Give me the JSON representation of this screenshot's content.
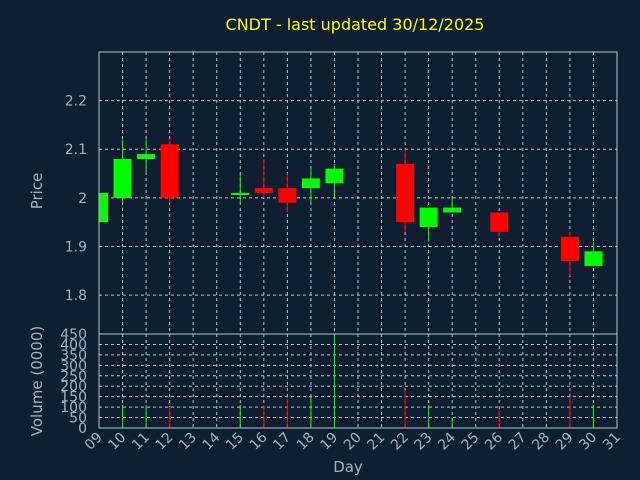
{
  "chart_data": [
    {
      "type": "candlestick",
      "title": "CNDT - last updated 30/12/2025",
      "ylabel": "Price",
      "ylim": [
        1.72,
        2.3
      ],
      "yticks": [
        "1.8",
        "1.9",
        "2",
        "2.1",
        "2.2"
      ],
      "x_ticks": [
        "09",
        "10",
        "11",
        "12",
        "13",
        "14",
        "15",
        "16",
        "17",
        "18",
        "19",
        "20",
        "21",
        "22",
        "23",
        "24",
        "25",
        "26",
        "27",
        "28",
        "29",
        "30",
        "31"
      ],
      "colors": {
        "up": "#00ff00",
        "down": "#ff0000"
      },
      "grid": true,
      "candles": [
        {
          "day": "09",
          "open": 1.95,
          "high": 2.01,
          "low": 1.95,
          "close": 2.01
        },
        {
          "day": "10",
          "open": 2.0,
          "high": 2.12,
          "low": 1.99,
          "close": 2.08
        },
        {
          "day": "11",
          "open": 2.08,
          "high": 2.12,
          "low": 2.05,
          "close": 2.09
        },
        {
          "day": "12",
          "open": 2.11,
          "high": 2.12,
          "low": 1.99,
          "close": 2.0
        },
        {
          "day": "15",
          "open": 2.01,
          "high": 2.05,
          "low": 1.99,
          "close": 2.01
        },
        {
          "day": "16",
          "open": 2.02,
          "high": 2.08,
          "low": 2.0,
          "close": 2.01
        },
        {
          "day": "17",
          "open": 2.02,
          "high": 2.05,
          "low": 1.97,
          "close": 1.99
        },
        {
          "day": "18",
          "open": 2.02,
          "high": 2.06,
          "low": 1.99,
          "close": 2.04
        },
        {
          "day": "19",
          "open": 2.03,
          "high": 2.07,
          "low": 2.0,
          "close": 2.06
        },
        {
          "day": "22",
          "open": 2.07,
          "high": 2.1,
          "low": 1.93,
          "close": 1.95
        },
        {
          "day": "23",
          "open": 1.94,
          "high": 1.98,
          "low": 1.91,
          "close": 1.98
        },
        {
          "day": "24",
          "open": 1.97,
          "high": 2.0,
          "low": 1.97,
          "close": 1.98
        },
        {
          "day": "26",
          "open": 1.97,
          "high": 1.97,
          "low": 1.92,
          "close": 1.93
        },
        {
          "day": "29",
          "open": 1.92,
          "high": 1.93,
          "low": 1.84,
          "close": 1.87
        },
        {
          "day": "30",
          "open": 1.86,
          "high": 1.91,
          "low": 1.86,
          "close": 1.89
        }
      ]
    },
    {
      "type": "bar",
      "ylabel": "Volume (0000)",
      "xlabel": "Day",
      "ylim": [
        0,
        450
      ],
      "yticks": [
        "0",
        "50",
        "100",
        "150",
        "200",
        "250",
        "300",
        "350",
        "400",
        "450"
      ],
      "x_ticks": [
        "09",
        "10",
        "11",
        "12",
        "13",
        "14",
        "15",
        "16",
        "17",
        "18",
        "19",
        "20",
        "21",
        "22",
        "23",
        "24",
        "25",
        "26",
        "27",
        "28",
        "29",
        "30",
        "31"
      ],
      "grid": true,
      "bars": [
        {
          "day": "09",
          "value": 40,
          "direction": "up"
        },
        {
          "day": "10",
          "value": 110,
          "direction": "up"
        },
        {
          "day": "11",
          "value": 110,
          "direction": "up"
        },
        {
          "day": "12",
          "value": 100,
          "direction": "down"
        },
        {
          "day": "15",
          "value": 110,
          "direction": "up"
        },
        {
          "day": "16",
          "value": 110,
          "direction": "down"
        },
        {
          "day": "17",
          "value": 140,
          "direction": "down"
        },
        {
          "day": "18",
          "value": 150,
          "direction": "up"
        },
        {
          "day": "19",
          "value": 440,
          "direction": "up"
        },
        {
          "day": "22",
          "value": 180,
          "direction": "down"
        },
        {
          "day": "23",
          "value": 110,
          "direction": "up"
        },
        {
          "day": "24",
          "value": 50,
          "direction": "up"
        },
        {
          "day": "26",
          "value": 90,
          "direction": "down"
        },
        {
          "day": "29",
          "value": 150,
          "direction": "down"
        },
        {
          "day": "30",
          "value": 110,
          "direction": "up"
        }
      ]
    }
  ]
}
